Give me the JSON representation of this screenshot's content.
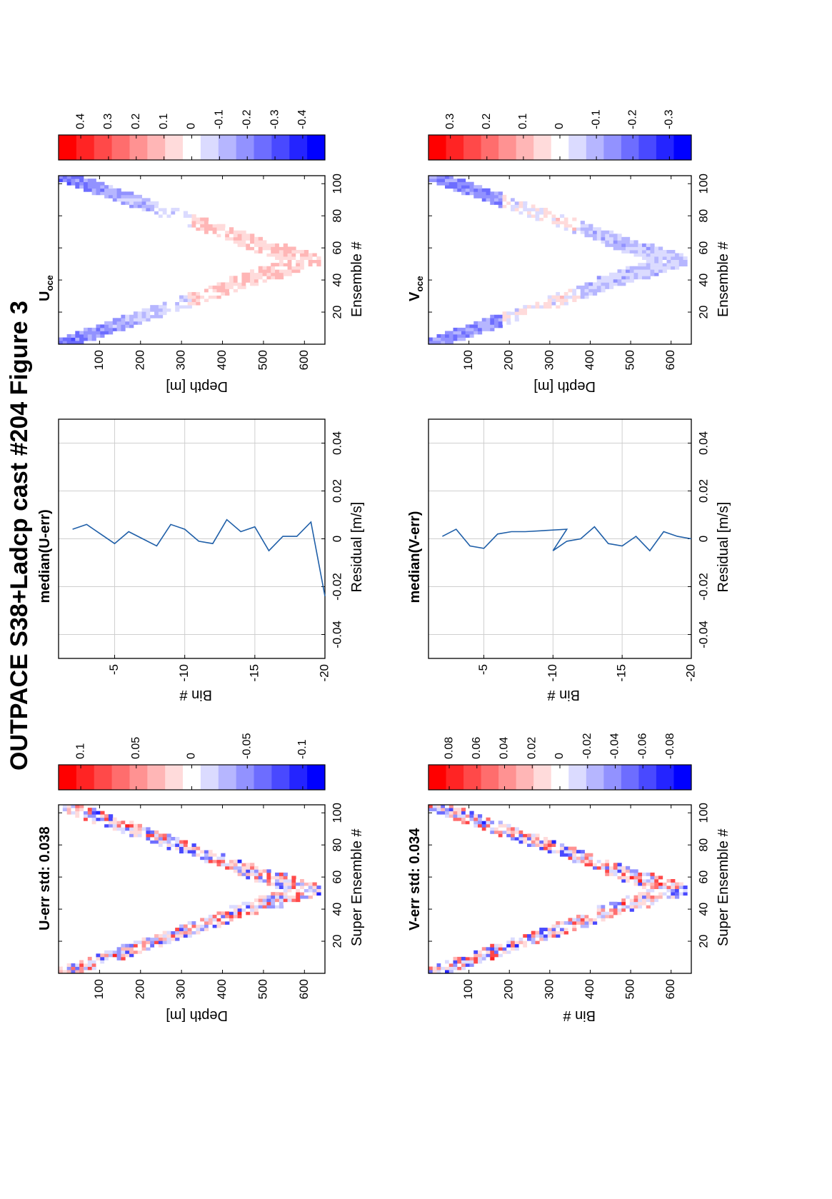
{
  "figure": {
    "title": "OUTPACE S38+Ladcp cast #204  Figure 3"
  },
  "chart_data": [
    {
      "id": "u-err",
      "type": "heatmap",
      "title": "U-err std: 0.038",
      "xlabel": "Super Ensemble #",
      "ylabel": "Depth [m]",
      "xticks": [
        20,
        40,
        60,
        80,
        100
      ],
      "yticks": [
        100,
        200,
        300,
        400,
        500,
        600
      ],
      "xlim": [
        0,
        105
      ],
      "ylim": [
        0,
        650
      ],
      "y_reversed": true,
      "pattern": "v-shape",
      "colorbar": {
        "ticks": [
          0.1,
          0.05,
          0,
          -0.05,
          -0.1
        ],
        "tick_labels": [
          "0.1",
          "0.05",
          "0",
          "-0.05",
          "-0.1"
        ],
        "range": [
          -0.12,
          0.12
        ],
        "colormap": "red-white-blue"
      }
    },
    {
      "id": "median-u-err",
      "type": "line",
      "title": "median(U-err)",
      "xlabel": "Residual [m/s]",
      "ylabel": "Bin #",
      "xticks": [
        -0.04,
        -0.02,
        0,
        0.02,
        0.04
      ],
      "xtick_labels": [
        "-0.04",
        "-0.02",
        "0",
        "0.02",
        "0.04"
      ],
      "yticks": [
        -5,
        -10,
        -15,
        -20
      ],
      "xlim": [
        -0.05,
        0.05
      ],
      "ylim": [
        -20,
        -1
      ],
      "grid": true,
      "series": [
        {
          "x": [
            0.004,
            0.006,
            0.002,
            -0.002,
            0.003,
            0.0,
            -0.003,
            0.006,
            0.004,
            -0.001,
            -0.002,
            0.008,
            0.003,
            0.005,
            -0.005,
            0.001,
            0.001,
            0.007,
            -0.024
          ],
          "y": [
            -2,
            -3,
            -4,
            -5,
            -6,
            -7,
            -8,
            -9,
            -10,
            -11,
            -12,
            -13,
            -14,
            -15,
            -16,
            -17,
            -18,
            -19,
            -20
          ],
          "color": "#1f5fa8"
        }
      ]
    },
    {
      "id": "u-oce",
      "type": "heatmap",
      "title": "U",
      "title_sub": "oce",
      "xlabel": "Ensemble #",
      "ylabel": "Depth [m]",
      "xticks": [
        20,
        40,
        60,
        80,
        100
      ],
      "yticks": [
        100,
        200,
        300,
        400,
        500,
        600
      ],
      "xlim": [
        0,
        105
      ],
      "ylim": [
        0,
        650
      ],
      "y_reversed": true,
      "pattern": "v-shape",
      "colorbar": {
        "ticks": [
          0.4,
          0.3,
          0.2,
          0.1,
          0,
          -0.1,
          -0.2,
          -0.3,
          -0.4
        ],
        "tick_labels": [
          "0.4",
          "0.3",
          "0.2",
          "0.1",
          "0",
          "-0.1",
          "-0.2",
          "-0.3",
          "-0.4"
        ],
        "range": [
          -0.48,
          0.48
        ],
        "colormap": "red-white-blue"
      }
    },
    {
      "id": "v-err",
      "type": "heatmap",
      "title": "V-err std: 0.034",
      "xlabel": "Super Ensemble #",
      "ylabel": "Bin #",
      "xticks": [
        20,
        40,
        60,
        80,
        100
      ],
      "yticks": [
        100,
        200,
        300,
        400,
        500,
        600
      ],
      "xlim": [
        0,
        105
      ],
      "ylim": [
        0,
        650
      ],
      "y_reversed": true,
      "pattern": "v-shape",
      "colorbar": {
        "ticks": [
          0.08,
          0.06,
          0.04,
          0.02,
          0,
          -0.02,
          -0.04,
          -0.06,
          -0.08
        ],
        "tick_labels": [
          "0.08",
          "0.06",
          "0.04",
          "0.02",
          "0",
          "-0.02",
          "-0.04",
          "-0.06",
          "-0.08"
        ],
        "range": [
          -0.095,
          0.095
        ],
        "colormap": "red-white-blue"
      }
    },
    {
      "id": "median-v-err",
      "type": "line",
      "title": "median(V-err)",
      "xlabel": "Residual [m/s]",
      "ylabel": "Bin #",
      "xticks": [
        -0.04,
        -0.02,
        0,
        0.02,
        0.04
      ],
      "xtick_labels": [
        "-0.04",
        "-0.02",
        "0",
        "0.02",
        "0.04"
      ],
      "yticks": [
        -5,
        -10,
        -15,
        -20
      ],
      "xlim": [
        -0.05,
        0.05
      ],
      "ylim": [
        -20,
        -1
      ],
      "grid": true,
      "series": [
        {
          "x": [
            0.001,
            0.004,
            -0.003,
            -0.004,
            0.002,
            0.003,
            0.003,
            0.004,
            -0.005,
            -0.001,
            0.0,
            0.005,
            -0.002,
            -0.003,
            0.001,
            -0.005,
            0.003,
            0.001,
            0.0
          ],
          "y": [
            -2,
            -3,
            -4,
            -5,
            -6,
            -7,
            -8,
            -11,
            -10,
            -11,
            -12,
            -13,
            -14,
            -15,
            -16,
            -17,
            -18,
            -19,
            -20
          ],
          "color": "#1f5fa8"
        }
      ]
    },
    {
      "id": "v-oce",
      "type": "heatmap",
      "title": "V",
      "title_sub": "oce",
      "xlabel": "Ensemble #",
      "ylabel": "Depth [m]",
      "xticks": [
        20,
        40,
        60,
        80,
        100
      ],
      "yticks": [
        100,
        200,
        300,
        400,
        500,
        600
      ],
      "xlim": [
        0,
        105
      ],
      "ylim": [
        0,
        650
      ],
      "y_reversed": true,
      "pattern": "v-shape",
      "colorbar": {
        "ticks": [
          0.3,
          0.2,
          0.1,
          0,
          -0.1,
          -0.2,
          -0.3
        ],
        "tick_labels": [
          "0.3",
          "0.2",
          "0.1",
          "0",
          "-0.1",
          "-0.2",
          "-0.3"
        ],
        "range": [
          -0.36,
          0.36
        ],
        "colormap": "red-white-blue"
      }
    }
  ]
}
